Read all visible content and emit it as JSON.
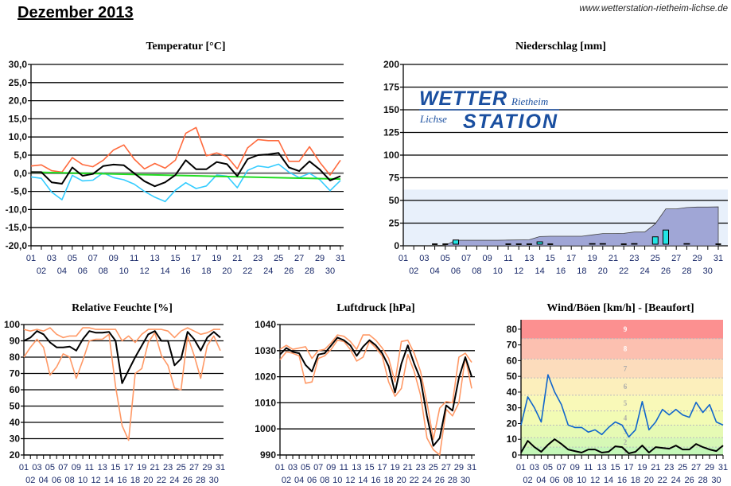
{
  "header": {
    "title": "Dezember 2013",
    "url": "www.wetterstation-rietheim-lichse.de"
  },
  "days": [
    "01",
    "02",
    "03",
    "04",
    "05",
    "06",
    "07",
    "08",
    "09",
    "10",
    "11",
    "12",
    "13",
    "14",
    "15",
    "16",
    "17",
    "18",
    "19",
    "20",
    "21",
    "22",
    "23",
    "24",
    "25",
    "26",
    "27",
    "28",
    "29",
    "30",
    "31"
  ],
  "logo": {
    "line1": "WETTER",
    "line1b": "Rietheim",
    "line2a": "Lichse",
    "line2": "STATION",
    "color": "#1a4fa0"
  },
  "chart_data": [
    {
      "id": "temperature",
      "type": "line",
      "title": "Temperatur [°C]",
      "ylim": [
        -20,
        30
      ],
      "yticks": [
        "-20,0",
        "-15,0",
        "-10,0",
        "-5,0",
        "0,0",
        "5,0",
        "10,0",
        "15,0",
        "20,0",
        "25,0",
        "30,0"
      ],
      "ystep": 5,
      "series": [
        {
          "name": "max",
          "color": "#ff6a3d",
          "values": [
            2,
            2.3,
            0.7,
            0.3,
            4.3,
            2.4,
            1.8,
            3.6,
            6.4,
            7.8,
            3.9,
            1.2,
            2.7,
            1.4,
            3.6,
            11,
            12.6,
            4.8,
            5.6,
            4.6,
            1.2,
            7,
            9.3,
            9,
            9,
            3.3,
            3.3,
            7.3,
            3,
            -0.5,
            3.6
          ]
        },
        {
          "name": "min",
          "color": "#33ccff",
          "values": [
            -1,
            -1.4,
            -5.2,
            -7.3,
            -0.6,
            -2.1,
            -1.9,
            0.1,
            -1.2,
            -1.8,
            -3,
            -5,
            -6.6,
            -7.8,
            -4.7,
            -2.6,
            -4.2,
            -3.5,
            -0.5,
            -0.8,
            -4,
            0.8,
            2,
            1.6,
            2.5,
            0.3,
            -1.2,
            0,
            -1.8,
            -4.8,
            -2
          ]
        },
        {
          "name": "trend",
          "color": "#22dd22",
          "values": [
            0.3,
            -1.6
          ],
          "linear": true
        },
        {
          "name": "avg",
          "color": "#000000",
          "values": [
            0.3,
            0.3,
            -2.5,
            -2.9,
            1.6,
            -0.7,
            -0.2,
            2,
            2.4,
            2.2,
            0,
            -2.2,
            -3.6,
            -2.5,
            -0.5,
            3.6,
            1.1,
            1.1,
            3.1,
            2.5,
            -0.8,
            3.9,
            5,
            5.2,
            5.6,
            1.6,
            0.6,
            3.3,
            1,
            -2,
            -0.8
          ]
        }
      ]
    },
    {
      "id": "precipitation",
      "type": "bar",
      "title": "Niederschlag [mm]",
      "ylim": [
        0,
        200
      ],
      "yticks": [
        "0",
        "25",
        "50",
        "75",
        "100",
        "125",
        "150",
        "175",
        "200"
      ],
      "ystep": 25,
      "band_max": 62,
      "band_color": "#e8f0fb",
      "cumulative_color": "#a0a6d6",
      "bar_color": "#22e5e5",
      "values": [
        0,
        0,
        0,
        0.3,
        0.3,
        5.5,
        0,
        0,
        0,
        0,
        0.2,
        0.2,
        0.2,
        3.5,
        0.3,
        0,
        0,
        0,
        1.5,
        1.5,
        0,
        0.2,
        1.5,
        0,
        9,
        16.5,
        0,
        1.5,
        0.5,
        0,
        0.2
      ]
    },
    {
      "id": "humidity",
      "type": "line",
      "title": "Relative Feuchte [%]",
      "ylim": [
        20,
        100
      ],
      "yticks": [
        "20",
        "30",
        "40",
        "50",
        "60",
        "70",
        "80",
        "90",
        "100"
      ],
      "ystep": 10,
      "series": [
        {
          "name": "max",
          "color": "#ff9966",
          "values": [
            97,
            96,
            97,
            96,
            98,
            94,
            92,
            93,
            93,
            98,
            98,
            97,
            97,
            97,
            97,
            90,
            93,
            89,
            94,
            97,
            97,
            97,
            96,
            92,
            96,
            98,
            96,
            94,
            95,
            97,
            97
          ]
        },
        {
          "name": "min",
          "color": "#ff9966",
          "values": [
            80,
            86,
            91,
            86,
            69,
            74,
            82,
            80,
            67,
            78,
            90,
            91,
            91,
            94,
            62,
            38,
            29,
            70,
            73,
            89,
            95,
            81,
            75,
            61,
            60,
            93,
            81,
            67,
            87,
            93,
            84
          ]
        },
        {
          "name": "avg",
          "color": "#000000",
          "values": [
            90,
            92,
            96,
            94,
            89,
            86,
            86,
            86.5,
            84,
            91,
            96,
            95,
            95,
            95.5,
            90,
            64,
            72,
            80,
            87,
            94,
            96,
            90,
            90,
            75,
            79,
            95.5,
            91,
            84,
            92,
            95.5,
            92
          ]
        }
      ]
    },
    {
      "id": "pressure",
      "type": "line",
      "title": "Luftdruck [hPa]",
      "ylim": [
        990,
        1040
      ],
      "yticks": [
        "990",
        "1000",
        "1010",
        "1020",
        "1030",
        "1040"
      ],
      "ystep": 10,
      "series": [
        {
          "name": "max",
          "color": "#ff9966",
          "values": [
            1030.5,
            1032,
            1030.5,
            1031,
            1031.5,
            1027,
            1030,
            1030.5,
            1033,
            1036,
            1035.5,
            1033.5,
            1030.5,
            1036,
            1036,
            1034,
            1031,
            1027,
            1018,
            1033.5,
            1034,
            1029,
            1022,
            1010,
            996,
            1008,
            1010.5,
            1010,
            1027.5,
            1029,
            1025.5
          ]
        },
        {
          "name": "min",
          "color": "#ff9966",
          "values": [
            1026.5,
            1029.5,
            1029,
            1028,
            1017.5,
            1018,
            1027,
            1028,
            1030.5,
            1034,
            1033.5,
            1030.5,
            1026,
            1027.5,
            1033.5,
            1031,
            1028,
            1018,
            1012.5,
            1015.5,
            1028.5,
            1022,
            1013,
            996.5,
            992,
            990,
            1007.5,
            1005,
            1010,
            1027.5,
            1015.5
          ]
        },
        {
          "name": "avg",
          "color": "#000000",
          "values": [
            1028.5,
            1031,
            1029.5,
            1029,
            1024.5,
            1022,
            1028.5,
            1029,
            1032,
            1035,
            1034,
            1032,
            1028,
            1031.5,
            1034,
            1032,
            1029,
            1024,
            1014,
            1025,
            1032,
            1025,
            1019,
            1005,
            993.5,
            996.5,
            1009,
            1007,
            1019.5,
            1027.5,
            1020
          ]
        }
      ]
    },
    {
      "id": "wind",
      "type": "line",
      "title": "Wind/Böen [km/h] - [Beaufort]",
      "ylim": [
        0,
        86
      ],
      "yticks": [
        "0",
        "10",
        "20",
        "30",
        "40",
        "50",
        "60",
        "70",
        "80"
      ],
      "ystep": 10,
      "beaufort": [
        {
          "label": "1",
          "from": 0,
          "to": 5,
          "color": "#c4f7b8"
        },
        {
          "label": "2",
          "from": 5,
          "to": 11,
          "color": "#d6f8b6"
        },
        {
          "label": "3",
          "from": 11,
          "to": 19,
          "color": "#e6fab4"
        },
        {
          "label": "4",
          "from": 19,
          "to": 28,
          "color": "#f2fbb4"
        },
        {
          "label": "5",
          "from": 28,
          "to": 38,
          "color": "#f9f9b8"
        },
        {
          "label": "6",
          "from": 38,
          "to": 49,
          "color": "#fcefbc"
        },
        {
          "label": "7",
          "from": 49,
          "to": 61,
          "color": "#fcdcbc"
        },
        {
          "label": "8",
          "from": 61,
          "to": 74,
          "color": "#fcc0b0"
        },
        {
          "label": "9",
          "from": 74,
          "to": 86,
          "color": "#fc9090"
        }
      ],
      "series": [
        {
          "name": "gusts",
          "color": "#1166cc",
          "values": [
            19,
            37,
            30,
            21,
            51,
            40,
            32,
            19,
            17.5,
            17.5,
            14.5,
            16,
            13,
            17.5,
            21,
            19,
            11.5,
            16,
            34,
            16,
            21,
            29,
            25.5,
            29,
            25.5,
            24,
            33.5,
            27,
            32,
            21,
            19
          ]
        },
        {
          "name": "wind",
          "color": "#000000",
          "values": [
            1.5,
            9,
            5,
            2,
            6.5,
            10,
            7,
            3.5,
            2.5,
            1.5,
            3.5,
            3.5,
            1.5,
            2,
            5.5,
            5,
            1,
            2,
            6,
            1.5,
            5,
            4.5,
            4,
            6,
            3.5,
            3.5,
            7,
            5,
            3.5,
            2.5,
            6
          ]
        }
      ]
    }
  ]
}
